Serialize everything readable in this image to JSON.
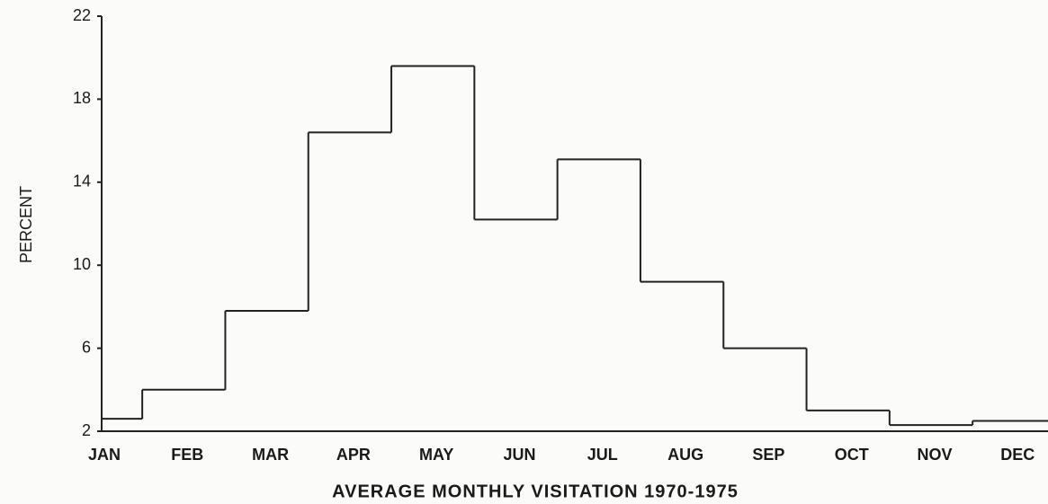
{
  "chart_data": {
    "type": "step",
    "title": "AVERAGE MONTHLY VISITATION 1970-1975",
    "y_label": "PERCENT",
    "categories": [
      "JAN",
      "FEB",
      "MAR",
      "APR",
      "MAY",
      "JUN",
      "JUL",
      "AUG",
      "SEP",
      "OCT",
      "NOV",
      "DEC"
    ],
    "values": [
      2.6,
      4.0,
      7.8,
      16.4,
      19.6,
      12.2,
      15.1,
      9.2,
      6.0,
      3.0,
      2.3,
      2.5
    ],
    "color": "#222222",
    "ylim": [
      2,
      22
    ],
    "yticks": [
      2,
      6,
      10,
      14,
      18,
      22
    ],
    "grid": false
  }
}
